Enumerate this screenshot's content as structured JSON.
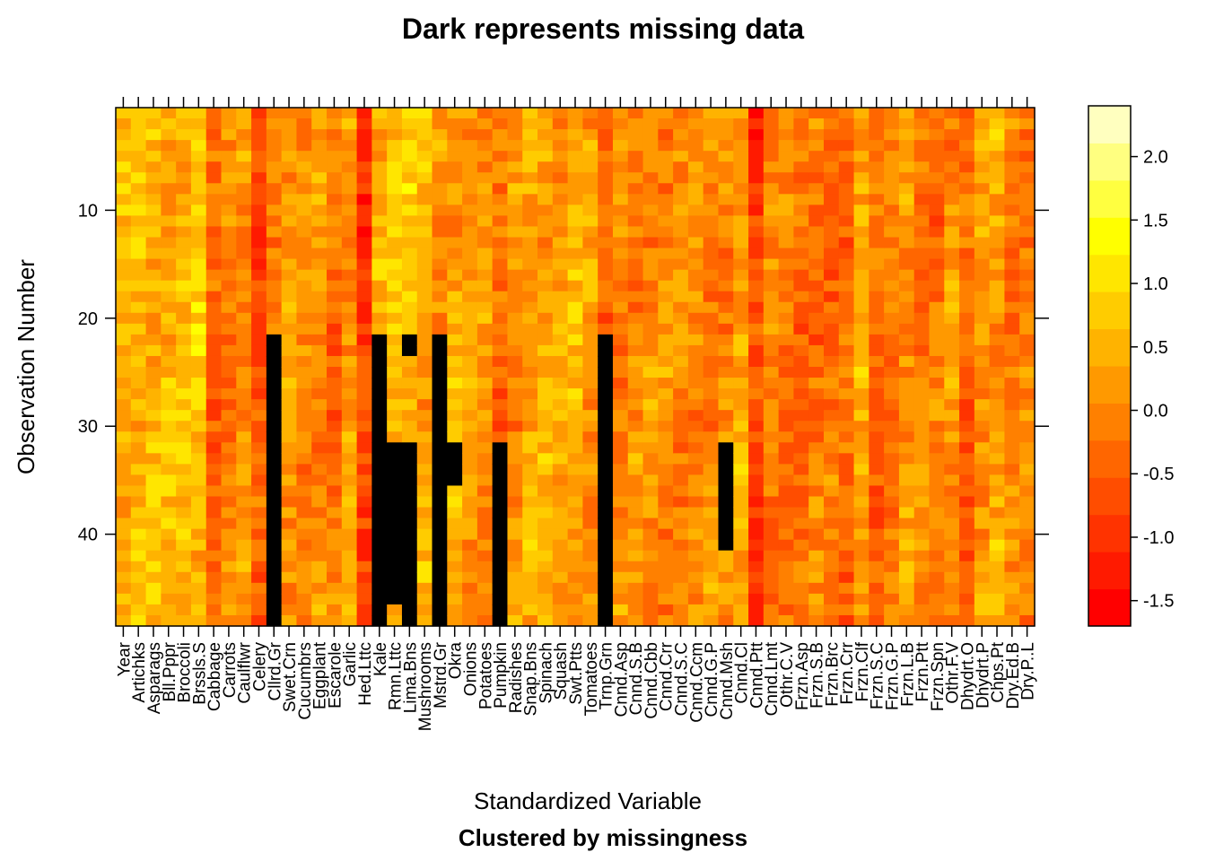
{
  "chart_data": {
    "type": "heatmap",
    "title": "Dark represents missing data",
    "xlabel": "Standardized Variable",
    "subtitle": "Clustered by missingness",
    "ylabel": "Observation Number",
    "n_obs": 48,
    "y_ticks": [
      10,
      20,
      30,
      40
    ],
    "colorbar_ticks": [
      -1.5,
      -1.0,
      -0.5,
      0.0,
      0.5,
      1.0,
      1.5,
      2.0
    ],
    "colorbar_tick_labels": [
      "-1.5",
      "-1.0",
      "-0.5",
      "0.0",
      "0.5",
      "1.0",
      "1.5",
      "2.0"
    ],
    "zlim": [
      -1.7,
      2.4
    ],
    "missing_color": "#000000",
    "palette": [
      "#ff0000",
      "#ff1a00",
      "#ff3300",
      "#ff4d00",
      "#ff6600",
      "#ff8000",
      "#ff9900",
      "#ffb300",
      "#ffcc00",
      "#ffe600",
      "#ffff00",
      "#ffff40",
      "#ffff80",
      "#ffffbf"
    ],
    "variables": [
      "Year",
      "Artichks",
      "Asparags",
      "Bll.Pppr",
      "Broccoli",
      "Brssls.S",
      "Cabbage",
      "Carrots",
      "Caulflwr",
      "Celery",
      "Cllrd.Gr",
      "Swet.Crn",
      "Cucumbrs",
      "Eggplant",
      "Escarole",
      "Garlic",
      "Hed.Lttc",
      "Kale",
      "Rmn.Lttc",
      "Lima.Bns",
      "Mushrooms",
      "Mstrd.Gr",
      "Okra",
      "Onions",
      "Potatoes",
      "Pumpkin",
      "Radishes",
      "Snap.Bns",
      "Spinach",
      "Squash",
      "Swt.Ptts",
      "Tomatoes",
      "Trnp.Grn",
      "Cnnd.Asp",
      "Cnnd.S.B",
      "Cnnd.Cbb",
      "Cnnd.Crr",
      "Cnnd.S.C",
      "Cnnd.Ccm",
      "Cnnd.G.P",
      "Cnnd.Msh",
      "Cnnd.Cl",
      "Cnnd.Ptt",
      "Cnnd.Lmt",
      "Othr.C.V",
      "Frzn.Asp",
      "Frzn.S.B",
      "Frzn.Brc",
      "Frzn.Crr",
      "Frzn.Clf",
      "Frzn.S.C",
      "Frzn.G.P",
      "Frzn.L.B",
      "Frzn.Ptt",
      "Frzn.Spn",
      "Othr.F.V",
      "Dhydrt.O",
      "Dhydrt.P",
      "Chps.Pt",
      "Dry.Ed.B",
      "Dry.P..L"
    ],
    "variable_mean_values": [
      0.5,
      0.6,
      0.5,
      0.5,
      0.6,
      0.7,
      -0.4,
      -0.1,
      0.1,
      -0.6,
      0.0,
      0.2,
      0.0,
      0.1,
      -0.3,
      0.2,
      -0.9,
      0.5,
      0.6,
      0.6,
      0.4,
      0.2,
      0.4,
      0.2,
      0.1,
      -0.4,
      0.1,
      0.3,
      0.4,
      0.3,
      0.4,
      0.2,
      -0.5,
      0.0,
      0.0,
      0.1,
      0.0,
      0.0,
      0.0,
      0.0,
      0.0,
      0.3,
      -0.8,
      -0.1,
      -0.2,
      -0.4,
      -0.2,
      -0.3,
      -0.3,
      0.4,
      -0.4,
      -0.2,
      0.2,
      -0.1,
      -0.2,
      0.1,
      -0.4,
      0.2,
      0.3,
      -0.1,
      -0.1
    ],
    "missing_blocks": [
      {
        "variable": "Cllrd.Gr",
        "from_obs": 22,
        "to_obs": 48
      },
      {
        "variable": "Kale",
        "from_obs": 22,
        "to_obs": 48
      },
      {
        "variable": "Rmn.Lttc",
        "from_obs": 32,
        "to_obs": 46
      },
      {
        "variable": "Lima.Bns",
        "from_obs": 22,
        "to_obs": 23
      },
      {
        "variable": "Lima.Bns",
        "from_obs": 32,
        "to_obs": 48
      },
      {
        "variable": "Mstrd.Gr",
        "from_obs": 22,
        "to_obs": 48
      },
      {
        "variable": "Okra",
        "from_obs": 32,
        "to_obs": 35
      },
      {
        "variable": "Pumpkin",
        "from_obs": 32,
        "to_obs": 48
      },
      {
        "variable": "Trnp.Grn",
        "from_obs": 22,
        "to_obs": 48
      },
      {
        "variable": "Cnnd.Msh",
        "from_obs": 32,
        "to_obs": 41
      }
    ]
  }
}
